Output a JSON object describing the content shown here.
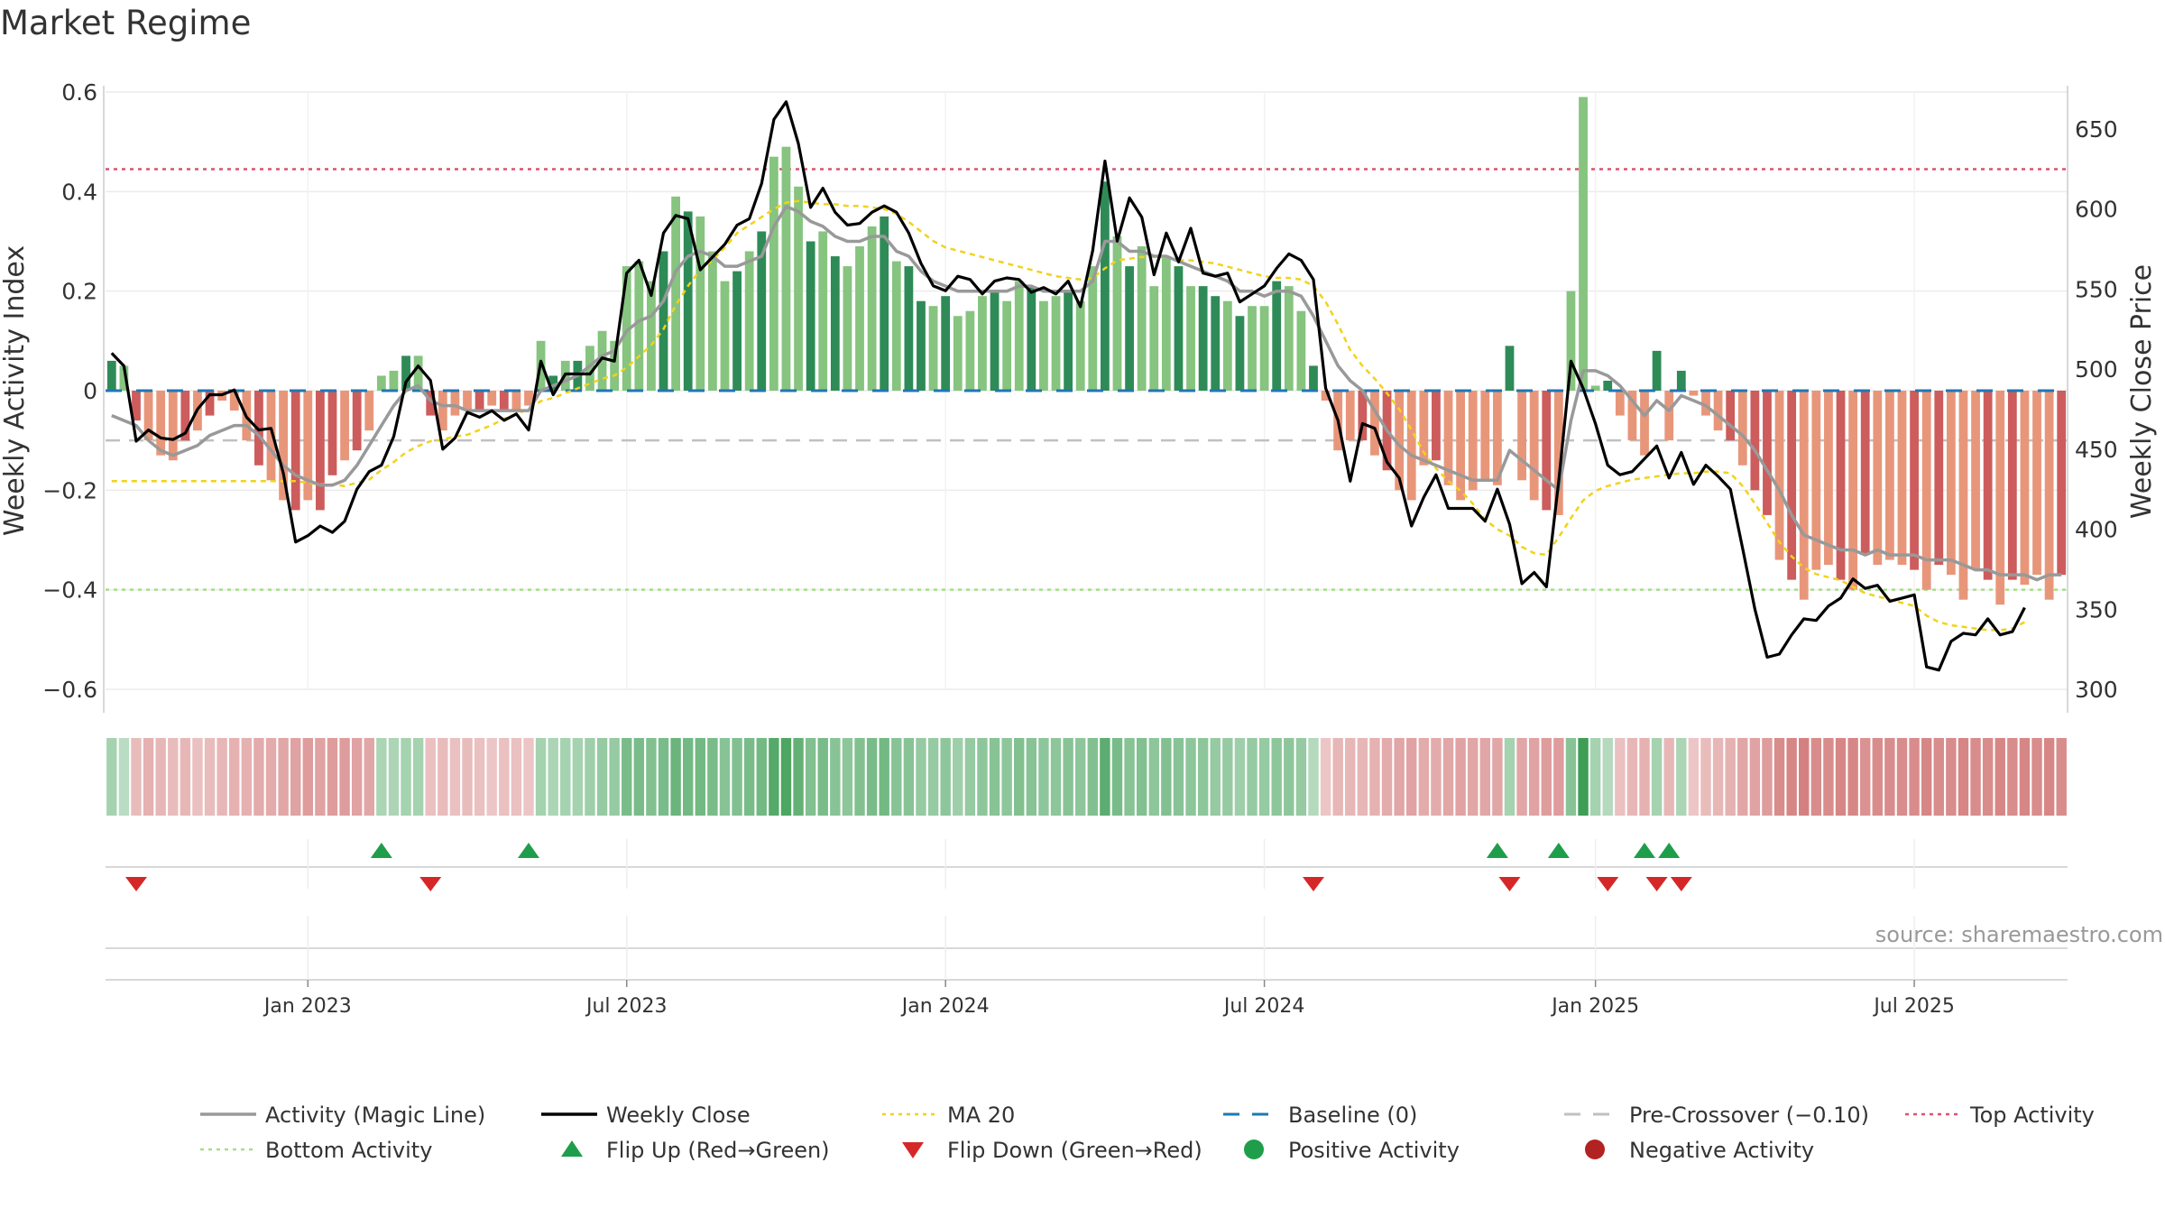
{
  "title": "Market Regime",
  "source": "source: sharemaestro.com",
  "colors": {
    "pos_dark": "#2e8b57",
    "pos_light": "#86c47f",
    "neg_dark": "#cd5c5c",
    "neg_light": "#e8967a",
    "magic": "#999999",
    "close": "#000000",
    "ma20": "#f2d21b",
    "baseline": "#1f77b4",
    "precross": "#c0c0c0",
    "top": "#d9546e",
    "bottom": "#a8dc8a",
    "flip_up": "#1e9e4a",
    "flip_down": "#d62728",
    "pos_dot": "#1e9e4a",
    "neg_dot": "#b22222"
  },
  "chart_data": {
    "type": "bar",
    "y_left": {
      "label": "Weekly Activity Index",
      "lim": [
        -0.63,
        0.6
      ],
      "ticks": [
        -0.6,
        -0.4,
        -0.2,
        0,
        0.2,
        0.4,
        0.6
      ],
      "tick_labels": [
        "−0.6",
        "−0.4",
        "−0.2",
        "0",
        "0.2",
        "0.4",
        "0.6"
      ]
    },
    "y_right": {
      "label": "Weekly Close Price",
      "lim": [
        295,
        680
      ],
      "ticks": [
        300,
        350,
        400,
        450,
        500,
        550,
        600,
        650
      ]
    },
    "x_ticks": [
      {
        "label": "Jan 2023",
        "index": 16
      },
      {
        "label": "Jul 2023",
        "index": 42
      },
      {
        "label": "Jan 2024",
        "index": 68
      },
      {
        "label": "Jul 2024",
        "index": 94
      },
      {
        "label": "Jan 2025",
        "index": 121
      },
      {
        "label": "Jul 2025",
        "index": 147
      }
    ],
    "levels": {
      "top": 0.445,
      "bottom": -0.4,
      "precross": -0.1,
      "baseline": 0
    },
    "activity": [
      0.06,
      0.05,
      -0.06,
      -0.1,
      -0.13,
      -0.14,
      -0.1,
      -0.08,
      -0.05,
      -0.02,
      -0.04,
      -0.1,
      -0.15,
      -0.18,
      -0.22,
      -0.24,
      -0.22,
      -0.24,
      -0.17,
      -0.14,
      -0.12,
      -0.08,
      0.03,
      0.04,
      0.07,
      0.07,
      -0.05,
      -0.08,
      -0.05,
      -0.04,
      -0.04,
      -0.03,
      -0.04,
      -0.04,
      -0.03,
      0.1,
      0.03,
      0.06,
      0.06,
      0.09,
      0.12,
      0.1,
      0.25,
      0.26,
      0.22,
      0.28,
      0.39,
      0.36,
      0.35,
      0.28,
      0.22,
      0.24,
      0.28,
      0.32,
      0.47,
      0.49,
      0.41,
      0.3,
      0.32,
      0.27,
      0.25,
      0.29,
      0.33,
      0.35,
      0.26,
      0.25,
      0.18,
      0.17,
      0.19,
      0.15,
      0.16,
      0.19,
      0.2,
      0.18,
      0.22,
      0.21,
      0.18,
      0.19,
      0.2,
      0.18,
      0.25,
      0.42,
      0.31,
      0.25,
      0.29,
      0.21,
      0.27,
      0.25,
      0.21,
      0.21,
      0.19,
      0.18,
      0.15,
      0.17,
      0.17,
      0.22,
      0.21,
      0.16,
      0.05,
      -0.02,
      -0.12,
      -0.1,
      -0.1,
      -0.13,
      -0.16,
      -0.2,
      -0.22,
      -0.15,
      -0.14,
      -0.19,
      -0.22,
      -0.2,
      -0.18,
      -0.19,
      0.09,
      -0.18,
      -0.22,
      -0.24,
      -0.25,
      0.2,
      0.59,
      0.01,
      0.02,
      -0.05,
      -0.1,
      -0.13,
      0.08,
      -0.1,
      0.04,
      -0.01,
      -0.05,
      -0.08,
      -0.1,
      -0.15,
      -0.2,
      -0.25,
      -0.34,
      -0.38,
      -0.42,
      -0.36,
      -0.35,
      -0.38,
      -0.4,
      -0.33,
      -0.35,
      -0.34,
      -0.35,
      -0.36,
      -0.4,
      -0.35,
      -0.37,
      -0.42,
      -0.36,
      -0.38,
      -0.43,
      -0.38,
      -0.39,
      -0.37,
      -0.42,
      -0.37
    ],
    "magic_line": [
      -0.05,
      -0.06,
      -0.07,
      -0.1,
      -0.12,
      -0.13,
      -0.12,
      -0.11,
      -0.09,
      -0.08,
      -0.07,
      -0.07,
      -0.09,
      -0.12,
      -0.15,
      -0.17,
      -0.18,
      -0.19,
      -0.19,
      -0.18,
      -0.15,
      -0.11,
      -0.07,
      -0.03,
      0.0,
      0.01,
      -0.02,
      -0.03,
      -0.03,
      -0.04,
      -0.04,
      -0.04,
      -0.04,
      -0.04,
      -0.04,
      0.0,
      0.01,
      0.02,
      0.03,
      0.05,
      0.07,
      0.08,
      0.12,
      0.14,
      0.15,
      0.18,
      0.24,
      0.27,
      0.28,
      0.27,
      0.25,
      0.25,
      0.26,
      0.27,
      0.33,
      0.37,
      0.36,
      0.34,
      0.33,
      0.31,
      0.3,
      0.3,
      0.31,
      0.31,
      0.28,
      0.27,
      0.24,
      0.22,
      0.21,
      0.2,
      0.2,
      0.2,
      0.2,
      0.2,
      0.21,
      0.21,
      0.2,
      0.2,
      0.2,
      0.2,
      0.22,
      0.3,
      0.3,
      0.28,
      0.28,
      0.27,
      0.27,
      0.26,
      0.25,
      0.24,
      0.23,
      0.22,
      0.2,
      0.2,
      0.19,
      0.2,
      0.2,
      0.19,
      0.15,
      0.1,
      0.05,
      0.02,
      0.0,
      -0.04,
      -0.08,
      -0.11,
      -0.13,
      -0.14,
      -0.15,
      -0.16,
      -0.17,
      -0.18,
      -0.18,
      -0.18,
      -0.12,
      -0.14,
      -0.16,
      -0.18,
      -0.2,
      -0.06,
      0.04,
      0.04,
      0.03,
      0.01,
      -0.02,
      -0.05,
      -0.02,
      -0.04,
      -0.01,
      -0.02,
      -0.03,
      -0.05,
      -0.07,
      -0.09,
      -0.12,
      -0.16,
      -0.2,
      -0.25,
      -0.29,
      -0.3,
      -0.31,
      -0.32,
      -0.32,
      -0.33,
      -0.32,
      -0.33,
      -0.33,
      -0.33,
      -0.34,
      -0.34,
      -0.34,
      -0.35,
      -0.36,
      -0.36,
      -0.37,
      -0.37,
      -0.37,
      -0.38,
      -0.37,
      -0.37
    ],
    "weekly_close": [
      510,
      502,
      455,
      462,
      457,
      456,
      460,
      475,
      484,
      484,
      487,
      470,
      462,
      463,
      435,
      392,
      396,
      402,
      398,
      405,
      425,
      436,
      440,
      458,
      492,
      502,
      493,
      450,
      457,
      473,
      470,
      474,
      468,
      472,
      462,
      505,
      484,
      497,
      497,
      497,
      507,
      505,
      560,
      568,
      546,
      585,
      596,
      594,
      562,
      570,
      578,
      590,
      594,
      616,
      656,
      667,
      641,
      601,
      613,
      598,
      590,
      591,
      598,
      602,
      598,
      585,
      566,
      552,
      549,
      558,
      556,
      547,
      555,
      557,
      556,
      548,
      551,
      547,
      555,
      539,
      574,
      630,
      580,
      607,
      595,
      559,
      585,
      567,
      588,
      560,
      558,
      560,
      542,
      547,
      552,
      563,
      572,
      568,
      556,
      488,
      468,
      430,
      466,
      463,
      442,
      432,
      402,
      420,
      434,
      413,
      413,
      413,
      405,
      425,
      403,
      366,
      373,
      364,
      430,
      505,
      488,
      466,
      440,
      434,
      436,
      444,
      452,
      432,
      448,
      428,
      440,
      433,
      425,
      388,
      350,
      320,
      322,
      334,
      344,
      343,
      352,
      357,
      369,
      363,
      365,
      355,
      357,
      359,
      314,
      312,
      330,
      335,
      334,
      344,
      334,
      336,
      351
    ],
    "ma20": [
      430,
      430,
      430,
      430,
      430,
      430,
      430,
      430,
      430,
      430,
      430,
      430,
      430,
      430,
      430,
      430,
      429,
      428,
      428,
      427,
      429,
      431,
      437,
      442,
      448,
      452,
      455,
      456,
      458,
      459,
      462,
      465,
      469,
      472,
      475,
      480,
      482,
      485,
      488,
      491,
      494,
      496,
      501,
      508,
      515,
      525,
      540,
      552,
      562,
      568,
      576,
      585,
      590,
      595,
      600,
      604,
      605,
      604,
      603,
      603,
      602,
      602,
      601,
      600,
      597,
      592,
      586,
      580,
      576,
      574,
      572,
      570,
      568,
      566,
      564,
      562,
      560,
      558,
      557,
      556,
      557,
      563,
      568,
      569,
      570,
      570,
      570,
      568,
      568,
      567,
      566,
      564,
      562,
      560,
      558,
      557,
      557,
      556,
      552,
      542,
      528,
      512,
      502,
      494,
      485,
      475,
      462,
      448,
      438,
      430,
      424,
      416,
      406,
      400,
      396,
      389,
      385,
      384,
      395,
      407,
      418,
      424,
      427,
      429,
      431,
      432,
      433,
      434,
      435,
      435,
      436,
      436,
      435,
      427,
      416,
      404,
      392,
      383,
      376,
      372,
      370,
      368,
      364,
      360,
      358,
      356,
      354,
      352,
      346,
      342,
      340,
      339,
      338,
      337,
      337,
      338,
      342
    ],
    "regime_strip": [
      0.3,
      0.15,
      -0.3,
      -0.4,
      -0.35,
      -0.3,
      -0.35,
      -0.25,
      -0.3,
      -0.35,
      -0.4,
      -0.4,
      -0.45,
      -0.45,
      -0.5,
      -0.55,
      -0.6,
      -0.55,
      -0.6,
      -0.6,
      -0.55,
      -0.5,
      0.25,
      0.25,
      0.3,
      0.3,
      -0.25,
      -0.3,
      -0.25,
      -0.3,
      -0.25,
      -0.2,
      -0.25,
      -0.25,
      -0.2,
      0.3,
      0.25,
      0.3,
      0.3,
      0.35,
      0.4,
      0.4,
      0.6,
      0.6,
      0.55,
      0.6,
      0.7,
      0.65,
      0.65,
      0.6,
      0.5,
      0.55,
      0.6,
      0.65,
      0.85,
      0.9,
      0.75,
      0.55,
      0.6,
      0.5,
      0.45,
      0.55,
      0.6,
      0.65,
      0.5,
      0.5,
      0.4,
      0.4,
      0.45,
      0.35,
      0.4,
      0.45,
      0.5,
      0.45,
      0.55,
      0.5,
      0.45,
      0.45,
      0.5,
      0.45,
      0.55,
      0.8,
      0.6,
      0.5,
      0.55,
      0.45,
      0.55,
      0.5,
      0.45,
      0.45,
      0.4,
      0.4,
      0.35,
      0.4,
      0.4,
      0.45,
      0.45,
      0.4,
      0.2,
      -0.2,
      -0.35,
      -0.35,
      -0.35,
      -0.4,
      -0.45,
      -0.5,
      -0.55,
      -0.45,
      -0.45,
      -0.5,
      -0.55,
      -0.5,
      -0.5,
      -0.5,
      0.3,
      -0.5,
      -0.55,
      -0.6,
      -0.6,
      0.5,
      1.0,
      0.3,
      0.2,
      -0.25,
      -0.35,
      -0.4,
      0.3,
      -0.35,
      0.25,
      -0.2,
      -0.3,
      -0.35,
      -0.4,
      -0.5,
      -0.55,
      -0.6,
      -0.75,
      -0.8,
      -0.85,
      -0.75,
      -0.75,
      -0.8,
      -0.8,
      -0.7,
      -0.75,
      -0.75,
      -0.75,
      -0.75,
      -0.8,
      -0.75,
      -0.75,
      -0.8,
      -0.75,
      -0.75,
      -0.8,
      -0.75,
      -0.8,
      -0.75,
      -0.8,
      -0.75
    ],
    "flips_up": [
      22,
      34,
      113,
      118,
      125,
      127
    ],
    "flips_down": [
      2,
      26,
      98,
      114,
      122,
      126,
      128
    ],
    "legend": [
      {
        "label": "Activity (Magic Line)",
        "style": "line",
        "color": "#999999"
      },
      {
        "label": "Weekly Close",
        "style": "line",
        "color": "#000000"
      },
      {
        "label": "MA 20",
        "style": "dotted",
        "color": "#f2d21b"
      },
      {
        "label": "Baseline (0)",
        "style": "dashed",
        "color": "#1f77b4"
      },
      {
        "label": "Pre-Crossover (−0.10)",
        "style": "dashed",
        "color": "#c0c0c0"
      },
      {
        "label": "Top Activity",
        "style": "dotted",
        "color": "#d9546e"
      },
      {
        "label": "Bottom Activity",
        "style": "dotted",
        "color": "#a8dc8a"
      },
      {
        "label": "Flip Up (Red→Green)",
        "style": "tri-up",
        "color": "#1e9e4a"
      },
      {
        "label": "Flip Down (Green→Red)",
        "style": "tri-down",
        "color": "#d62728"
      },
      {
        "label": "Positive Activity",
        "style": "dot",
        "color": "#1e9e4a"
      },
      {
        "label": "Negative Activity",
        "style": "dot",
        "color": "#b22222"
      }
    ]
  }
}
